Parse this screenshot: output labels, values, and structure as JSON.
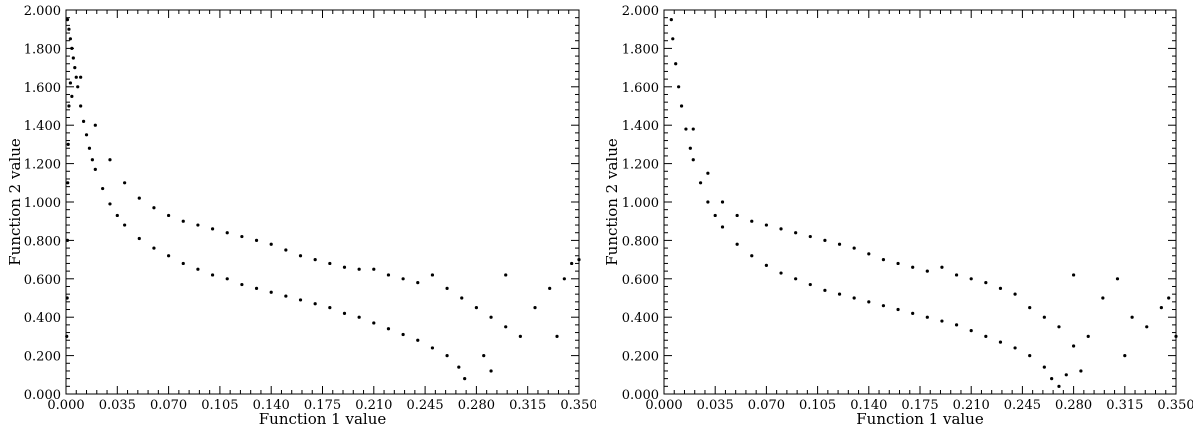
{
  "chart_data": [
    {
      "type": "scatter",
      "title": "",
      "xlabel": "Function 1 value",
      "ylabel": "Function 2 value",
      "xlim": [
        0.0,
        0.35
      ],
      "ylim": [
        0.0,
        2.0
      ],
      "xticks": [
        "0.000",
        "0.035",
        "0.070",
        "0.105",
        "0.140",
        "0.175",
        "0.210",
        "0.245",
        "0.280",
        "0.315",
        "0.350"
      ],
      "yticks": [
        "0.000",
        "0.200",
        "0.400",
        "0.600",
        "0.800",
        "1.000",
        "1.200",
        "1.400",
        "1.600",
        "1.800",
        "2.000"
      ],
      "grid": false,
      "legend": "none",
      "marker_color": "#000000",
      "series": [
        {
          "points": [
            [
              0.001,
              1.95
            ],
            [
              0.002,
              1.9
            ],
            [
              0.003,
              1.85
            ],
            [
              0.004,
              1.8
            ],
            [
              0.005,
              1.75
            ],
            [
              0.006,
              1.7
            ],
            [
              0.007,
              1.65
            ],
            [
              0.008,
              1.6
            ],
            [
              0.01,
              1.5
            ],
            [
              0.012,
              1.42
            ],
            [
              0.014,
              1.35
            ],
            [
              0.016,
              1.28
            ],
            [
              0.018,
              1.22
            ],
            [
              0.02,
              1.17
            ],
            [
              0.025,
              1.07
            ],
            [
              0.03,
              0.99
            ],
            [
              0.035,
              0.93
            ],
            [
              0.04,
              0.88
            ],
            [
              0.05,
              0.81
            ],
            [
              0.06,
              0.76
            ],
            [
              0.07,
              0.72
            ],
            [
              0.08,
              0.68
            ],
            [
              0.09,
              0.65
            ],
            [
              0.1,
              0.62
            ],
            [
              0.11,
              0.6
            ],
            [
              0.12,
              0.57
            ],
            [
              0.13,
              0.55
            ],
            [
              0.14,
              0.53
            ],
            [
              0.15,
              0.51
            ],
            [
              0.16,
              0.49
            ],
            [
              0.17,
              0.47
            ],
            [
              0.18,
              0.45
            ],
            [
              0.19,
              0.42
            ],
            [
              0.2,
              0.4
            ],
            [
              0.21,
              0.37
            ],
            [
              0.22,
              0.34
            ],
            [
              0.23,
              0.31
            ],
            [
              0.24,
              0.28
            ],
            [
              0.25,
              0.24
            ],
            [
              0.26,
              0.2
            ],
            [
              0.268,
              0.14
            ],
            [
              0.272,
              0.08
            ],
            [
              0.01,
              1.65
            ],
            [
              0.02,
              1.4
            ],
            [
              0.03,
              1.22
            ],
            [
              0.04,
              1.1
            ],
            [
              0.05,
              1.02
            ],
            [
              0.06,
              0.97
            ],
            [
              0.07,
              0.93
            ],
            [
              0.08,
              0.9
            ],
            [
              0.09,
              0.88
            ],
            [
              0.1,
              0.86
            ],
            [
              0.11,
              0.84
            ],
            [
              0.12,
              0.82
            ],
            [
              0.13,
              0.8
            ],
            [
              0.14,
              0.78
            ],
            [
              0.15,
              0.75
            ],
            [
              0.16,
              0.72
            ],
            [
              0.17,
              0.7
            ],
            [
              0.18,
              0.68
            ],
            [
              0.19,
              0.66
            ],
            [
              0.2,
              0.65
            ],
            [
              0.21,
              0.65
            ],
            [
              0.22,
              0.62
            ],
            [
              0.23,
              0.6
            ],
            [
              0.24,
              0.58
            ],
            [
              0.25,
              0.62
            ],
            [
              0.26,
              0.55
            ],
            [
              0.27,
              0.5
            ],
            [
              0.28,
              0.45
            ],
            [
              0.29,
              0.4
            ],
            [
              0.3,
              0.35
            ],
            [
              0.31,
              0.3
            ],
            [
              0.32,
              0.45
            ],
            [
              0.33,
              0.55
            ],
            [
              0.34,
              0.6
            ],
            [
              0.345,
              0.68
            ],
            [
              0.35,
              0.7
            ],
            [
              0.335,
              0.3
            ],
            [
              0.3,
              0.62
            ],
            [
              0.285,
              0.2
            ],
            [
              0.29,
              0.12
            ],
            [
              0.0005,
              0.3
            ],
            [
              0.0008,
              0.5
            ],
            [
              0.001,
              0.8
            ],
            [
              0.0012,
              1.1
            ],
            [
              0.0015,
              1.3
            ],
            [
              0.002,
              1.5
            ],
            [
              0.003,
              1.62
            ],
            [
              0.004,
              1.55
            ]
          ]
        }
      ]
    },
    {
      "type": "scatter",
      "title": "",
      "xlabel": "Function 1 value",
      "ylabel": "Function 2 value",
      "xlim": [
        0.0,
        0.35
      ],
      "ylim": [
        0.0,
        2.0
      ],
      "xticks": [
        "0.000",
        "0.035",
        "0.070",
        "0.105",
        "0.140",
        "0.175",
        "0.210",
        "0.245",
        "0.280",
        "0.315",
        "0.350"
      ],
      "yticks": [
        "0.000",
        "0.200",
        "0.400",
        "0.600",
        "0.800",
        "1.000",
        "1.200",
        "1.400",
        "1.600",
        "1.800",
        "2.000"
      ],
      "grid": false,
      "legend": "none",
      "marker_color": "#000000",
      "series": [
        {
          "points": [
            [
              0.005,
              1.95
            ],
            [
              0.006,
              1.85
            ],
            [
              0.008,
              1.72
            ],
            [
              0.01,
              1.6
            ],
            [
              0.012,
              1.5
            ],
            [
              0.015,
              1.38
            ],
            [
              0.018,
              1.28
            ],
            [
              0.02,
              1.22
            ],
            [
              0.025,
              1.1
            ],
            [
              0.03,
              1.0
            ],
            [
              0.035,
              0.93
            ],
            [
              0.04,
              0.87
            ],
            [
              0.05,
              0.78
            ],
            [
              0.06,
              0.72
            ],
            [
              0.07,
              0.67
            ],
            [
              0.08,
              0.63
            ],
            [
              0.09,
              0.6
            ],
            [
              0.1,
              0.57
            ],
            [
              0.11,
              0.54
            ],
            [
              0.12,
              0.52
            ],
            [
              0.13,
              0.5
            ],
            [
              0.14,
              0.48
            ],
            [
              0.15,
              0.46
            ],
            [
              0.16,
              0.44
            ],
            [
              0.17,
              0.42
            ],
            [
              0.18,
              0.4
            ],
            [
              0.19,
              0.38
            ],
            [
              0.2,
              0.36
            ],
            [
              0.21,
              0.33
            ],
            [
              0.22,
              0.3
            ],
            [
              0.23,
              0.27
            ],
            [
              0.24,
              0.24
            ],
            [
              0.25,
              0.2
            ],
            [
              0.26,
              0.14
            ],
            [
              0.265,
              0.08
            ],
            [
              0.27,
              0.04
            ],
            [
              0.02,
              1.38
            ],
            [
              0.03,
              1.15
            ],
            [
              0.04,
              1.0
            ],
            [
              0.05,
              0.93
            ],
            [
              0.06,
              0.9
            ],
            [
              0.07,
              0.88
            ],
            [
              0.08,
              0.86
            ],
            [
              0.09,
              0.84
            ],
            [
              0.1,
              0.82
            ],
            [
              0.11,
              0.8
            ],
            [
              0.12,
              0.78
            ],
            [
              0.13,
              0.76
            ],
            [
              0.14,
              0.73
            ],
            [
              0.15,
              0.7
            ],
            [
              0.16,
              0.68
            ],
            [
              0.17,
              0.66
            ],
            [
              0.18,
              0.64
            ],
            [
              0.19,
              0.66
            ],
            [
              0.2,
              0.62
            ],
            [
              0.21,
              0.6
            ],
            [
              0.22,
              0.58
            ],
            [
              0.23,
              0.55
            ],
            [
              0.24,
              0.52
            ],
            [
              0.25,
              0.45
            ],
            [
              0.26,
              0.4
            ],
            [
              0.27,
              0.35
            ],
            [
              0.28,
              0.62
            ],
            [
              0.29,
              0.3
            ],
            [
              0.3,
              0.5
            ],
            [
              0.31,
              0.6
            ],
            [
              0.32,
              0.4
            ],
            [
              0.33,
              0.35
            ],
            [
              0.34,
              0.45
            ],
            [
              0.345,
              0.5
            ],
            [
              0.35,
              0.3
            ],
            [
              0.315,
              0.2
            ],
            [
              0.285,
              0.12
            ],
            [
              0.275,
              0.1
            ],
            [
              0.28,
              0.25
            ]
          ]
        }
      ]
    }
  ]
}
